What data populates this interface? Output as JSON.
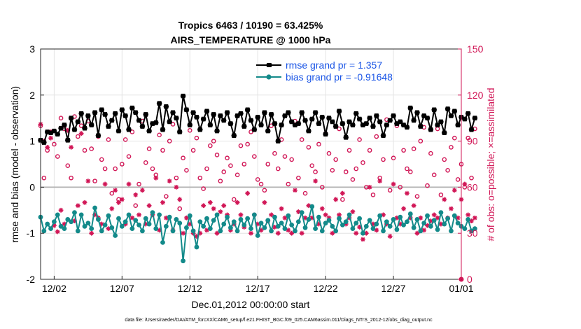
{
  "chart_data": {
    "type": "line",
    "title_line1": "Tropics 6463 / 10190 = 63.425%",
    "title_line2": "AIRS_TEMPERATURE @ 1000 hPa",
    "xlabel": "Dec.01,2012 00:00:00 start",
    "ylabel_left": "rmse and bias (model - observation)",
    "ylabel_right": "# of obs: o=possible; ×=assimilated",
    "footnote": "data file: /Users/raeder/DAI/ATM_forcXX/CAM6_setup/f.e21.FHIST_BGC.f09_025.CAM6assim.011/Diags_NTrS_2012-12/obs_diag_output.nc",
    "x_ticks": [
      {
        "day": 2,
        "label": "12/02"
      },
      {
        "day": 7,
        "label": "12/07"
      },
      {
        "day": 12,
        "label": "12/12"
      },
      {
        "day": 17,
        "label": "12/17"
      },
      {
        "day": 22,
        "label": "12/22"
      },
      {
        "day": 27,
        "label": "12/27"
      },
      {
        "day": 32,
        "label": "01/01"
      }
    ],
    "xlim": [
      1,
      32
    ],
    "ylim_left": [
      -2,
      3
    ],
    "yticks_left": [
      "-2",
      "-1",
      "0",
      "1",
      "2",
      "3"
    ],
    "ylim_right": [
      0,
      150
    ],
    "yticks_right": [
      "0",
      "30",
      "60",
      "90",
      "120",
      "150"
    ],
    "legend": {
      "position": "top-right",
      "rmse_label": "rmse grand pr = 1.357",
      "bias_label": "bias grand pr = -0.91648"
    },
    "colors": {
      "rmse": "#000000",
      "bias": "#138a8a",
      "obs": "#d11656",
      "legend_text": "#1a55e6",
      "zero_line": "#b0b0b0",
      "right_axis": "#d11656"
    },
    "series": [
      {
        "name": "rmse",
        "x0": 1.0,
        "step": 0.25,
        "values": [
          1.02,
          0.97,
          1.2,
          1.18,
          1.22,
          1.15,
          1.28,
          1.35,
          1.02,
          1.5,
          1.25,
          1.42,
          1.6,
          1.28,
          1.55,
          1.35,
          1.62,
          1.12,
          1.68,
          1.58,
          1.32,
          1.45,
          1.6,
          1.22,
          1.68,
          1.55,
          1.25,
          1.72,
          1.62,
          1.45,
          1.32,
          1.58,
          1.22,
          1.38,
          1.4,
          1.82,
          1.25,
          1.75,
          1.42,
          1.62,
          1.5,
          1.2,
          1.98,
          1.68,
          1.35,
          1.62,
          1.52,
          1.25,
          1.48,
          1.65,
          1.35,
          1.58,
          1.22,
          1.55,
          1.45,
          1.62,
          1.38,
          1.12,
          1.55,
          1.6,
          1.32,
          1.68,
          1.45,
          1.25,
          1.52,
          1.35,
          1.62,
          1.22,
          1.58,
          1.38,
          1.0,
          1.35,
          1.55,
          1.62,
          1.42,
          1.35,
          1.38,
          1.62,
          1.45,
          1.22,
          1.48,
          1.62,
          1.38,
          1.52,
          1.15,
          1.5,
          1.42,
          1.32,
          1.65,
          1.38,
          1.08,
          1.42,
          1.35,
          1.6,
          1.48,
          1.35,
          1.38,
          1.5,
          1.32,
          1.55,
          1.42,
          1.12,
          1.35,
          1.45,
          1.55,
          1.38,
          1.42,
          1.35,
          1.3,
          1.72,
          1.45,
          1.62,
          1.32,
          1.55,
          1.5,
          1.25,
          1.68,
          1.35,
          1.42,
          1.18,
          1.7,
          1.55,
          1.65,
          1.35,
          1.52,
          1.48,
          1.6,
          1.25,
          1.5
        ]
      },
      {
        "name": "bias",
        "x0": 1.0,
        "step": 0.25,
        "values": [
          -0.65,
          -0.95,
          -0.8,
          -0.9,
          -0.75,
          -0.6,
          -0.85,
          -0.9,
          -0.7,
          -0.75,
          -0.55,
          -0.95,
          -0.6,
          -0.85,
          -0.78,
          -0.9,
          -0.45,
          -0.7,
          -0.95,
          -0.82,
          -0.62,
          -0.88,
          -1.05,
          -0.68,
          -0.85,
          -0.75,
          -0.6,
          -0.9,
          -0.72,
          -0.82,
          -0.95,
          -0.68,
          -0.8,
          -0.55,
          -0.9,
          -0.6,
          -1.2,
          -0.85,
          -0.65,
          -0.95,
          -0.7,
          -0.78,
          -1.6,
          -0.88,
          -0.62,
          -0.95,
          -1.3,
          -0.75,
          -0.85,
          -0.68,
          -0.9,
          -0.72,
          -0.6,
          -0.95,
          -0.8,
          -0.65,
          -0.88,
          -0.75,
          -0.95,
          -0.7,
          -0.82,
          -0.68,
          -0.9,
          -0.6,
          -1.05,
          -0.78,
          -0.88,
          -0.72,
          -0.95,
          -0.65,
          -0.85,
          -0.78,
          -0.9,
          -0.62,
          -0.82,
          -0.95,
          -0.75,
          -0.55,
          -0.88,
          -0.7,
          -0.42,
          -0.9,
          -0.65,
          -0.95,
          -0.78,
          -0.72,
          -0.85,
          -0.95,
          -0.68,
          -0.82,
          -0.75,
          -0.6,
          -0.9,
          -0.78,
          -0.68,
          -1.0,
          -0.85,
          -0.72,
          -0.9,
          -0.8,
          -0.62,
          -0.95,
          -0.75,
          -0.85,
          -0.7,
          -0.92,
          -0.65,
          -0.82,
          -0.75,
          -0.58,
          -0.88,
          -0.7,
          -0.95,
          -0.78,
          -0.62,
          -0.85,
          -0.72,
          -0.92,
          -0.55,
          -0.8,
          -0.68,
          -0.95,
          -0.62,
          -0.78,
          -0.85,
          -0.9,
          -0.7,
          -0.95,
          -0.9
        ]
      }
    ],
    "obs_possible": {
      "x0": 1.0,
      "step": 0.25,
      "values": [
        100,
        66,
        84,
        96,
        88,
        80,
        105,
        98,
        74,
        66,
        106,
        93,
        100,
        84,
        103,
        85,
        64,
        93,
        78,
        72,
        91,
        56,
        72,
        52,
        75,
        91,
        80,
        96,
        48,
        62,
        103,
        76,
        85,
        72,
        68,
        94,
        84,
        54,
        90,
        101,
        66,
        46,
        79,
        71,
        97,
        84,
        92,
        66,
        59,
        72,
        87,
        90,
        81,
        64,
        70,
        79,
        74,
        52,
        68,
        87,
        75,
        88,
        96,
        80,
        65,
        62,
        58,
        75,
        100,
        82,
        72,
        91,
        80,
        62,
        78,
        103,
        66,
        91,
        56,
        86,
        74,
        70,
        88,
        60,
        95,
        82,
        71,
        78,
        98,
        52,
        70,
        84,
        65,
        72,
        91,
        76,
        60,
        84,
        55,
        93,
        66,
        78,
        104,
        58,
        79,
        100,
        60,
        84,
        72,
        70,
        85,
        54,
        90,
        99,
        61,
        82,
        68,
        98,
        55,
        78,
        71,
        86,
        92,
        65,
        75,
        60,
        92,
        66,
        98
      ]
    },
    "obs_assimilated": {
      "x0": 1.0,
      "step": 0.25,
      "values": [
        101,
        90,
        86,
        92,
        35,
        31,
        45,
        36,
        97,
        86,
        38,
        48,
        95,
        50,
        64,
        30,
        42,
        40,
        36,
        62,
        33,
        46,
        58,
        50,
        52,
        36,
        62,
        40,
        55,
        42,
        58,
        36,
        48,
        42,
        66,
        32,
        50,
        40,
        64,
        32,
        60,
        52,
        30,
        40,
        36,
        30,
        28,
        30,
        48,
        32,
        50,
        46,
        30,
        44,
        48,
        42,
        32,
        36,
        50,
        42,
        34,
        56,
        30,
        42,
        36,
        32,
        50,
        38,
        42,
        34,
        30,
        46,
        40,
        32,
        30,
        58,
        44,
        30,
        40,
        48,
        40,
        64,
        36,
        46,
        42,
        40,
        30,
        52,
        42,
        56,
        36,
        40,
        44,
        30,
        34,
        26,
        30,
        60,
        36,
        32,
        64,
        42,
        36,
        28,
        62,
        40,
        36,
        46,
        56,
        40,
        48,
        30,
        40,
        32,
        35,
        38,
        42,
        40,
        36,
        52,
        40,
        46,
        58,
        40,
        52,
        62,
        42,
        38,
        40
      ]
    }
  }
}
